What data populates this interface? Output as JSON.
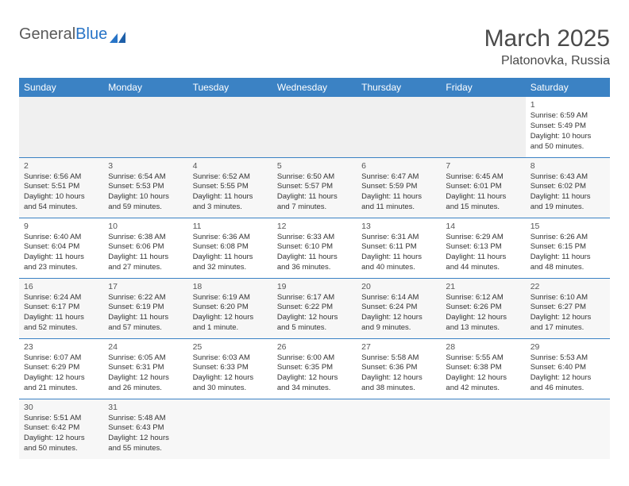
{
  "logo": {
    "part1": "General",
    "part2": "Blue"
  },
  "title": "March 2025",
  "subtitle": "Platonovka, Russia",
  "headers": [
    "Sunday",
    "Monday",
    "Tuesday",
    "Wednesday",
    "Thursday",
    "Friday",
    "Saturday"
  ],
  "weeks": [
    [
      null,
      null,
      null,
      null,
      null,
      null,
      {
        "d": "1",
        "sr": "Sunrise: 6:59 AM",
        "ss": "Sunset: 5:49 PM",
        "dl": "Daylight: 10 hours and 50 minutes."
      }
    ],
    [
      {
        "d": "2",
        "sr": "Sunrise: 6:56 AM",
        "ss": "Sunset: 5:51 PM",
        "dl": "Daylight: 10 hours and 54 minutes."
      },
      {
        "d": "3",
        "sr": "Sunrise: 6:54 AM",
        "ss": "Sunset: 5:53 PM",
        "dl": "Daylight: 10 hours and 59 minutes."
      },
      {
        "d": "4",
        "sr": "Sunrise: 6:52 AM",
        "ss": "Sunset: 5:55 PM",
        "dl": "Daylight: 11 hours and 3 minutes."
      },
      {
        "d": "5",
        "sr": "Sunrise: 6:50 AM",
        "ss": "Sunset: 5:57 PM",
        "dl": "Daylight: 11 hours and 7 minutes."
      },
      {
        "d": "6",
        "sr": "Sunrise: 6:47 AM",
        "ss": "Sunset: 5:59 PM",
        "dl": "Daylight: 11 hours and 11 minutes."
      },
      {
        "d": "7",
        "sr": "Sunrise: 6:45 AM",
        "ss": "Sunset: 6:01 PM",
        "dl": "Daylight: 11 hours and 15 minutes."
      },
      {
        "d": "8",
        "sr": "Sunrise: 6:43 AM",
        "ss": "Sunset: 6:02 PM",
        "dl": "Daylight: 11 hours and 19 minutes."
      }
    ],
    [
      {
        "d": "9",
        "sr": "Sunrise: 6:40 AM",
        "ss": "Sunset: 6:04 PM",
        "dl": "Daylight: 11 hours and 23 minutes."
      },
      {
        "d": "10",
        "sr": "Sunrise: 6:38 AM",
        "ss": "Sunset: 6:06 PM",
        "dl": "Daylight: 11 hours and 27 minutes."
      },
      {
        "d": "11",
        "sr": "Sunrise: 6:36 AM",
        "ss": "Sunset: 6:08 PM",
        "dl": "Daylight: 11 hours and 32 minutes."
      },
      {
        "d": "12",
        "sr": "Sunrise: 6:33 AM",
        "ss": "Sunset: 6:10 PM",
        "dl": "Daylight: 11 hours and 36 minutes."
      },
      {
        "d": "13",
        "sr": "Sunrise: 6:31 AM",
        "ss": "Sunset: 6:11 PM",
        "dl": "Daylight: 11 hours and 40 minutes."
      },
      {
        "d": "14",
        "sr": "Sunrise: 6:29 AM",
        "ss": "Sunset: 6:13 PM",
        "dl": "Daylight: 11 hours and 44 minutes."
      },
      {
        "d": "15",
        "sr": "Sunrise: 6:26 AM",
        "ss": "Sunset: 6:15 PM",
        "dl": "Daylight: 11 hours and 48 minutes."
      }
    ],
    [
      {
        "d": "16",
        "sr": "Sunrise: 6:24 AM",
        "ss": "Sunset: 6:17 PM",
        "dl": "Daylight: 11 hours and 52 minutes."
      },
      {
        "d": "17",
        "sr": "Sunrise: 6:22 AM",
        "ss": "Sunset: 6:19 PM",
        "dl": "Daylight: 11 hours and 57 minutes."
      },
      {
        "d": "18",
        "sr": "Sunrise: 6:19 AM",
        "ss": "Sunset: 6:20 PM",
        "dl": "Daylight: 12 hours and 1 minute."
      },
      {
        "d": "19",
        "sr": "Sunrise: 6:17 AM",
        "ss": "Sunset: 6:22 PM",
        "dl": "Daylight: 12 hours and 5 minutes."
      },
      {
        "d": "20",
        "sr": "Sunrise: 6:14 AM",
        "ss": "Sunset: 6:24 PM",
        "dl": "Daylight: 12 hours and 9 minutes."
      },
      {
        "d": "21",
        "sr": "Sunrise: 6:12 AM",
        "ss": "Sunset: 6:26 PM",
        "dl": "Daylight: 12 hours and 13 minutes."
      },
      {
        "d": "22",
        "sr": "Sunrise: 6:10 AM",
        "ss": "Sunset: 6:27 PM",
        "dl": "Daylight: 12 hours and 17 minutes."
      }
    ],
    [
      {
        "d": "23",
        "sr": "Sunrise: 6:07 AM",
        "ss": "Sunset: 6:29 PM",
        "dl": "Daylight: 12 hours and 21 minutes."
      },
      {
        "d": "24",
        "sr": "Sunrise: 6:05 AM",
        "ss": "Sunset: 6:31 PM",
        "dl": "Daylight: 12 hours and 26 minutes."
      },
      {
        "d": "25",
        "sr": "Sunrise: 6:03 AM",
        "ss": "Sunset: 6:33 PM",
        "dl": "Daylight: 12 hours and 30 minutes."
      },
      {
        "d": "26",
        "sr": "Sunrise: 6:00 AM",
        "ss": "Sunset: 6:35 PM",
        "dl": "Daylight: 12 hours and 34 minutes."
      },
      {
        "d": "27",
        "sr": "Sunrise: 5:58 AM",
        "ss": "Sunset: 6:36 PM",
        "dl": "Daylight: 12 hours and 38 minutes."
      },
      {
        "d": "28",
        "sr": "Sunrise: 5:55 AM",
        "ss": "Sunset: 6:38 PM",
        "dl": "Daylight: 12 hours and 42 minutes."
      },
      {
        "d": "29",
        "sr": "Sunrise: 5:53 AM",
        "ss": "Sunset: 6:40 PM",
        "dl": "Daylight: 12 hours and 46 minutes."
      }
    ],
    [
      {
        "d": "30",
        "sr": "Sunrise: 5:51 AM",
        "ss": "Sunset: 6:42 PM",
        "dl": "Daylight: 12 hours and 50 minutes."
      },
      {
        "d": "31",
        "sr": "Sunrise: 5:48 AM",
        "ss": "Sunset: 6:43 PM",
        "dl": "Daylight: 12 hours and 55 minutes."
      },
      null,
      null,
      null,
      null,
      null
    ]
  ],
  "colors": {
    "header_bg": "#3b82c4",
    "header_fg": "#ffffff",
    "row_alt": "#f7f7f7",
    "empty": "#f0f0f0",
    "border": "#3b82c4"
  }
}
